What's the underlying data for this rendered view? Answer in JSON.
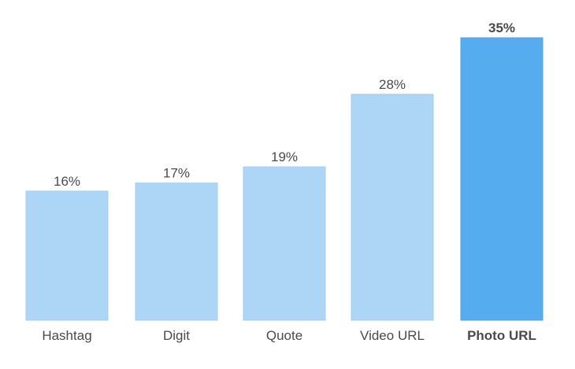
{
  "chart_data": {
    "type": "bar",
    "title": "",
    "xlabel": "",
    "ylabel": "",
    "ylim": [
      0,
      35
    ],
    "grid": false,
    "categories": [
      "Hashtag",
      "Digit",
      "Quote",
      "Video URL",
      "Photo URL"
    ],
    "values": [
      16,
      17,
      19,
      28,
      35
    ],
    "value_labels": [
      "16%",
      "17%",
      "19%",
      "28%",
      "35%"
    ],
    "highlighted": "Photo URL",
    "colors": {
      "bar": "#acd5f6",
      "highlight": "#55acee",
      "text": "#4a4a4a"
    }
  }
}
